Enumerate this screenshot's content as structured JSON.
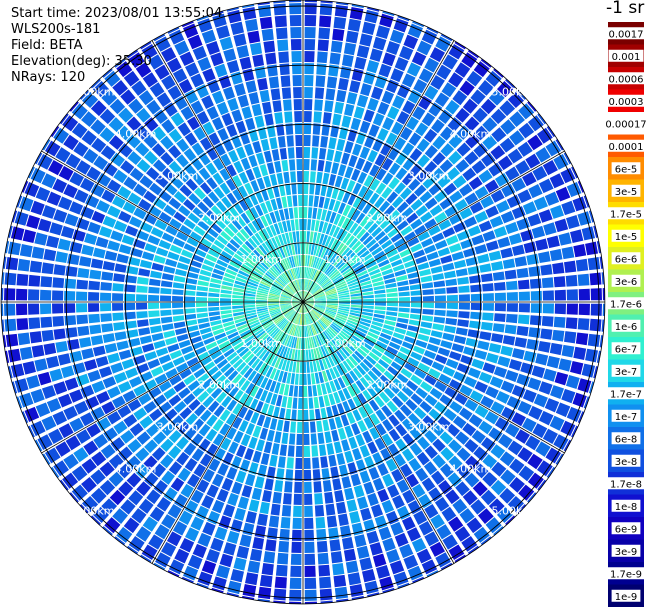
{
  "header": {
    "start_time": "Start time: 2023/08/01 13:55:04",
    "device": "WLS200s-181",
    "field": "Field: BETA",
    "elevation": "Elevation(deg): 35.30",
    "nrays": "NRays: 120"
  },
  "colorbar": {
    "title": "-1 sr",
    "labels": [
      "0.0017",
      "0.001",
      "0.0006",
      "0.0003",
      "0.00017",
      "0.0001",
      "6e-5",
      "3e-5",
      "1.7e-5",
      "1e-5",
      "6e-6",
      "3e-6",
      "1.7e-6",
      "1e-6",
      "6e-7",
      "3e-7",
      "1.7e-7",
      "1e-7",
      "6e-8",
      "3e-8",
      "1.7e-8",
      "1e-8",
      "6e-9",
      "3e-9",
      "1.7e-9",
      "1e-9"
    ],
    "colors": [
      "#7a0000",
      "#a00000",
      "#c80000",
      "#f00000",
      "#ffffff",
      "#ff5a00",
      "#ff8c00",
      "#ffb400",
      "#ffdc00",
      "#ffff00",
      "#e0f020",
      "#b0f050",
      "#80f080",
      "#50f0b0",
      "#30f0d0",
      "#20d8e8",
      "#10b0f0",
      "#1090f0",
      "#1070e8",
      "#1050e0",
      "#1030d8",
      "#1010d0",
      "#1000c0",
      "#0800a8",
      "#000090",
      "#000070"
    ]
  },
  "chart_data": {
    "type": "heatmap",
    "subtype": "polar PPI scan",
    "field": "BETA",
    "units": "sr^-1",
    "elevation_deg": 35.3,
    "n_rays": 120,
    "range_rings_km": [
      1.0,
      2.0,
      3.0,
      4.0,
      5.0
    ],
    "ring_labels": [
      "1.00km",
      "2.00km",
      "3.00km",
      "4.00km",
      "5.00km"
    ],
    "spokes_deg": [
      0,
      30,
      60,
      90,
      120,
      150,
      180,
      210,
      240,
      270,
      300,
      330
    ],
    "max_range_km": 5.1,
    "color_scale": "log",
    "value_range": [
      1e-09,
      0.0017
    ],
    "value_profile_by_range_km": [
      {
        "range_km": 0.0,
        "value": 1.7e-06
      },
      {
        "range_km": 1.0,
        "value": 5e-07
      },
      {
        "range_km": 2.0,
        "value": 2e-07
      },
      {
        "range_km": 3.0,
        "value": 1e-07
      },
      {
        "range_km": 4.0,
        "value": 6e-08
      },
      {
        "range_km": 5.0,
        "value": 3e-08
      }
    ]
  }
}
